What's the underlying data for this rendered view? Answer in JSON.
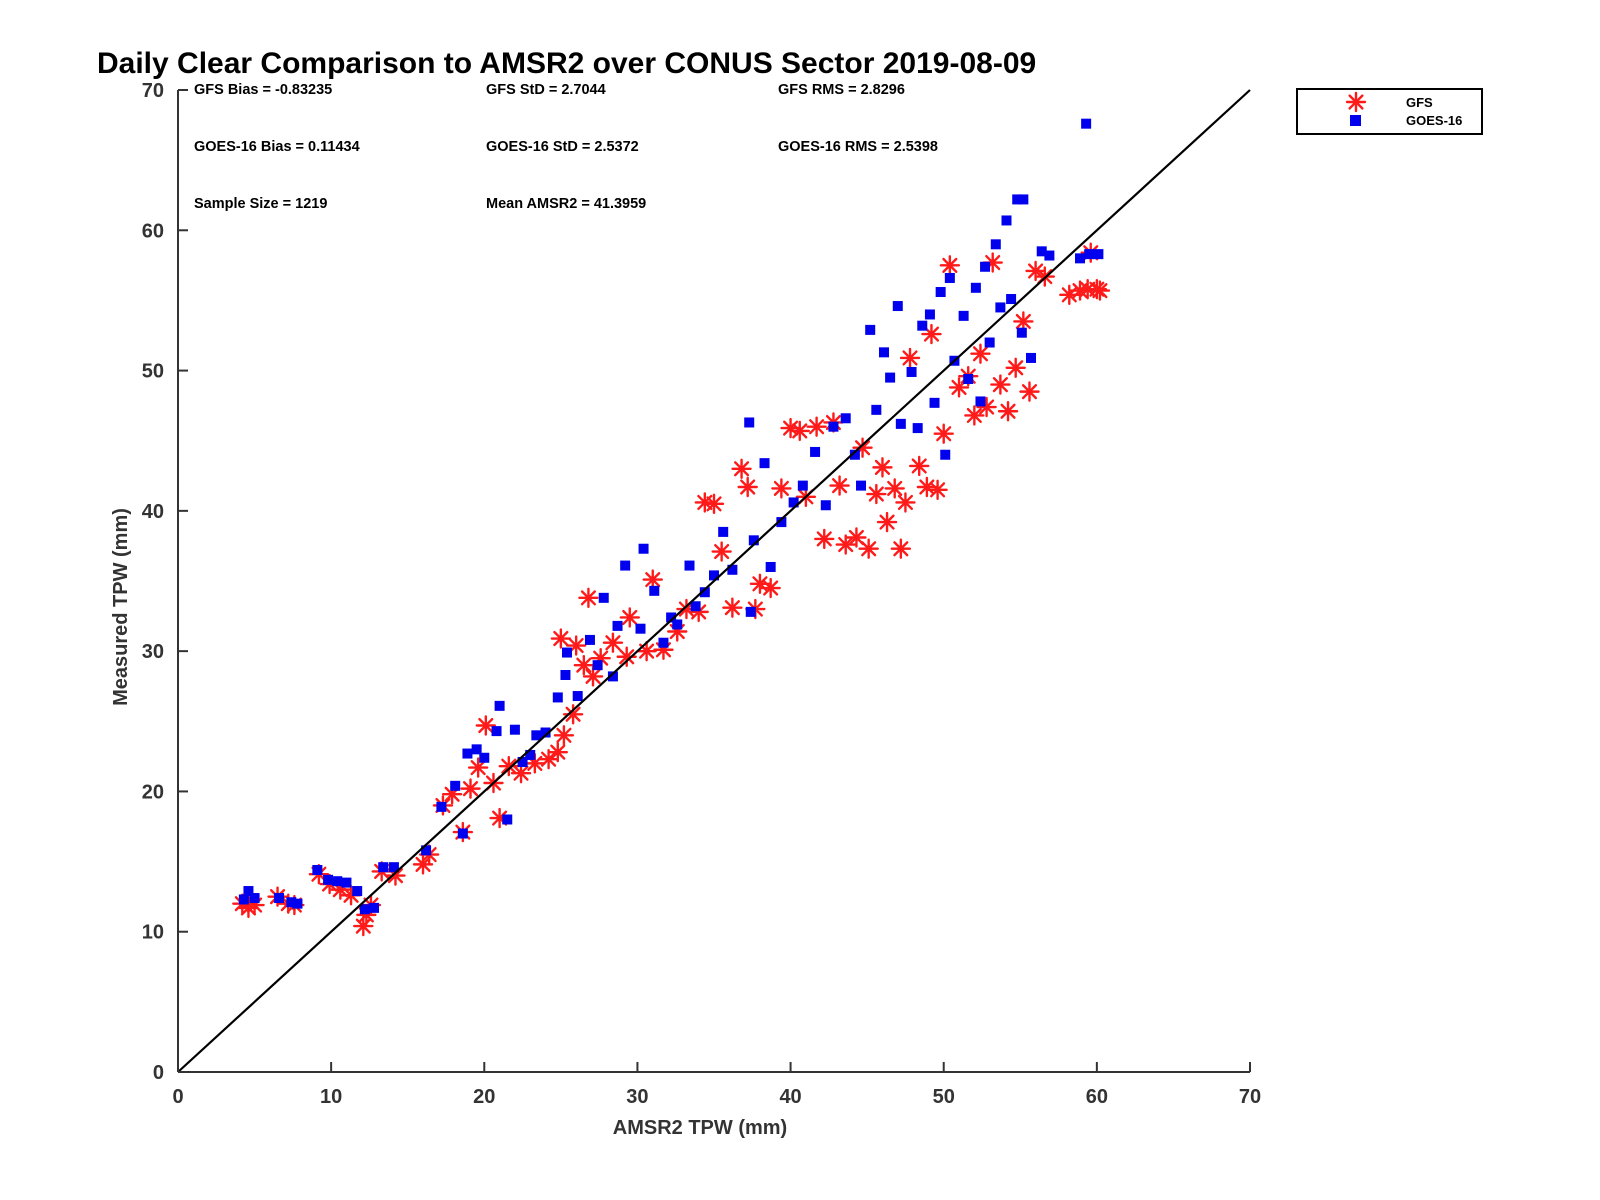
{
  "colors": {
    "gfs": "#ff1a1a",
    "goes": "#0000ee",
    "axis": "#333333",
    "line": "#000000"
  },
  "chart_data": {
    "type": "scatter",
    "title": "Daily Clear Comparison to AMSR2 over CONUS Sector 2019-08-09",
    "xlabel": "AMSR2 TPW (mm)",
    "ylabel": "Measured TPW (mm)",
    "xlim": [
      0,
      70
    ],
    "ylim": [
      0,
      70
    ],
    "xticks": [
      "0",
      "10",
      "20",
      "30",
      "40",
      "50",
      "60",
      "70"
    ],
    "yticks": [
      "0",
      "10",
      "20",
      "30",
      "40",
      "50",
      "60",
      "70"
    ],
    "grid": false,
    "legend_position": "outside top-right",
    "reference_line": [
      [
        0,
        0
      ],
      [
        70,
        70
      ]
    ],
    "stats": {
      "gfs_bias": "GFS Bias = -0.83235",
      "gfs_std": "GFS StD = 2.7044",
      "gfs_rms": "GFS RMS = 2.8296",
      "goes_bias": "GOES-16 Bias = 0.11434",
      "goes_std": "GOES-16 StD = 2.5372",
      "goes_rms": "GOES-16 RMS = 2.5398",
      "sample_size": "Sample Size = 1219",
      "mean_amsr2": "Mean AMSR2 = 41.3959"
    },
    "series": [
      {
        "name": "GFS",
        "marker": "asterisk",
        "points": [
          [
            4.2,
            12.0
          ],
          [
            4.6,
            11.7
          ],
          [
            5.0,
            11.9
          ],
          [
            6.5,
            12.5
          ],
          [
            7.2,
            12.0
          ],
          [
            7.6,
            11.9
          ],
          [
            9.2,
            14.1
          ],
          [
            9.9,
            13.4
          ],
          [
            10.6,
            13.0
          ],
          [
            11.3,
            12.6
          ],
          [
            12.1,
            10.4
          ],
          [
            12.3,
            11.2
          ],
          [
            12.6,
            11.9
          ],
          [
            13.3,
            14.3
          ],
          [
            14.2,
            14.0
          ],
          [
            16.0,
            14.8
          ],
          [
            16.4,
            15.5
          ],
          [
            17.3,
            19.0
          ],
          [
            17.9,
            19.8
          ],
          [
            18.6,
            17.1
          ],
          [
            19.1,
            20.2
          ],
          [
            19.6,
            21.7
          ],
          [
            20.1,
            24.7
          ],
          [
            20.6,
            20.6
          ],
          [
            21.0,
            18.1
          ],
          [
            21.6,
            21.8
          ],
          [
            22.4,
            21.3
          ],
          [
            23.3,
            22.0
          ],
          [
            24.2,
            22.3
          ],
          [
            24.8,
            22.8
          ],
          [
            25.2,
            24.0
          ],
          [
            25.8,
            25.5
          ],
          [
            25.0,
            30.9
          ],
          [
            26.0,
            30.4
          ],
          [
            26.5,
            29.0
          ],
          [
            27.1,
            28.2
          ],
          [
            26.8,
            33.8
          ],
          [
            27.6,
            29.5
          ],
          [
            28.4,
            30.6
          ],
          [
            29.3,
            29.6
          ],
          [
            29.5,
            32.4
          ],
          [
            30.6,
            30.0
          ],
          [
            31.0,
            35.1
          ],
          [
            31.7,
            30.1
          ],
          [
            32.6,
            31.4
          ],
          [
            33.2,
            33.0
          ],
          [
            34.0,
            32.8
          ],
          [
            34.4,
            40.6
          ],
          [
            35.0,
            40.5
          ],
          [
            35.5,
            37.1
          ],
          [
            36.2,
            33.1
          ],
          [
            36.8,
            43.0
          ],
          [
            37.2,
            41.7
          ],
          [
            37.7,
            33.0
          ],
          [
            38.0,
            34.8
          ],
          [
            38.7,
            34.5
          ],
          [
            39.4,
            41.6
          ],
          [
            40.0,
            45.9
          ],
          [
            40.6,
            45.7
          ],
          [
            41.0,
            41.0
          ],
          [
            41.7,
            46.0
          ],
          [
            42.2,
            38.0
          ],
          [
            42.8,
            46.3
          ],
          [
            43.2,
            41.8
          ],
          [
            43.6,
            37.6
          ],
          [
            44.3,
            38.1
          ],
          [
            44.7,
            44.5
          ],
          [
            45.1,
            37.3
          ],
          [
            45.6,
            41.2
          ],
          [
            46.0,
            43.1
          ],
          [
            46.3,
            39.2
          ],
          [
            46.8,
            41.6
          ],
          [
            47.2,
            37.3
          ],
          [
            47.5,
            40.6
          ],
          [
            47.8,
            50.9
          ],
          [
            48.4,
            43.2
          ],
          [
            48.9,
            41.7
          ],
          [
            49.6,
            41.5
          ],
          [
            49.2,
            52.6
          ],
          [
            50.0,
            45.5
          ],
          [
            50.4,
            57.5
          ],
          [
            51.0,
            48.8
          ],
          [
            51.6,
            49.6
          ],
          [
            52.0,
            46.8
          ],
          [
            52.4,
            51.2
          ],
          [
            52.8,
            47.4
          ],
          [
            53.2,
            57.7
          ],
          [
            53.7,
            49.0
          ],
          [
            54.2,
            47.1
          ],
          [
            54.7,
            50.2
          ],
          [
            55.2,
            53.5
          ],
          [
            55.6,
            48.5
          ],
          [
            56.0,
            57.1
          ],
          [
            56.6,
            56.7
          ],
          [
            58.2,
            55.4
          ],
          [
            58.9,
            55.7
          ],
          [
            59.4,
            55.8
          ],
          [
            59.6,
            58.4
          ],
          [
            60.0,
            55.8
          ],
          [
            60.2,
            55.7
          ]
        ]
      },
      {
        "name": "GOES-16",
        "marker": "square",
        "points": [
          [
            4.3,
            12.3
          ],
          [
            4.6,
            12.9
          ],
          [
            5.0,
            12.4
          ],
          [
            6.6,
            12.4
          ],
          [
            7.4,
            12.1
          ],
          [
            7.8,
            12.0
          ],
          [
            9.1,
            14.4
          ],
          [
            9.8,
            13.7
          ],
          [
            10.4,
            13.6
          ],
          [
            11.0,
            13.5
          ],
          [
            11.7,
            12.9
          ],
          [
            12.2,
            11.6
          ],
          [
            12.8,
            11.7
          ],
          [
            13.4,
            14.6
          ],
          [
            14.1,
            14.6
          ],
          [
            16.2,
            15.8
          ],
          [
            17.2,
            18.9
          ],
          [
            18.1,
            20.4
          ],
          [
            18.6,
            17.0
          ],
          [
            18.9,
            22.7
          ],
          [
            19.5,
            23.0
          ],
          [
            20.0,
            22.4
          ],
          [
            20.8,
            24.3
          ],
          [
            21.0,
            26.1
          ],
          [
            21.5,
            18.0
          ],
          [
            22.0,
            24.4
          ],
          [
            22.5,
            22.1
          ],
          [
            23.0,
            22.6
          ],
          [
            23.4,
            24.0
          ],
          [
            24.0,
            24.2
          ],
          [
            24.8,
            26.7
          ],
          [
            25.3,
            28.3
          ],
          [
            25.4,
            29.9
          ],
          [
            26.1,
            26.8
          ],
          [
            26.9,
            30.8
          ],
          [
            27.4,
            29.0
          ],
          [
            27.8,
            33.8
          ],
          [
            28.4,
            28.2
          ],
          [
            28.7,
            31.8
          ],
          [
            29.2,
            36.1
          ],
          [
            30.2,
            31.6
          ],
          [
            30.4,
            37.3
          ],
          [
            31.1,
            34.3
          ],
          [
            31.7,
            30.6
          ],
          [
            32.2,
            32.4
          ],
          [
            32.6,
            31.9
          ],
          [
            33.4,
            36.1
          ],
          [
            33.8,
            33.2
          ],
          [
            34.4,
            34.2
          ],
          [
            35.0,
            35.4
          ],
          [
            35.6,
            38.5
          ],
          [
            36.2,
            35.8
          ],
          [
            37.3,
            46.3
          ],
          [
            37.4,
            32.8
          ],
          [
            37.6,
            37.9
          ],
          [
            38.3,
            43.4
          ],
          [
            38.7,
            36.0
          ],
          [
            39.4,
            39.2
          ],
          [
            40.2,
            40.6
          ],
          [
            40.8,
            41.8
          ],
          [
            41.6,
            44.2
          ],
          [
            42.3,
            40.4
          ],
          [
            42.8,
            46.0
          ],
          [
            43.6,
            46.6
          ],
          [
            44.2,
            44.0
          ],
          [
            44.6,
            41.8
          ],
          [
            45.2,
            52.9
          ],
          [
            45.6,
            47.2
          ],
          [
            46.1,
            51.3
          ],
          [
            46.5,
            49.5
          ],
          [
            47.0,
            54.6
          ],
          [
            47.2,
            46.2
          ],
          [
            47.9,
            49.9
          ],
          [
            48.3,
            45.9
          ],
          [
            48.6,
            53.2
          ],
          [
            49.1,
            54.0
          ],
          [
            49.4,
            47.7
          ],
          [
            49.8,
            55.6
          ],
          [
            50.1,
            44.0
          ],
          [
            50.4,
            56.6
          ],
          [
            50.7,
            50.7
          ],
          [
            51.3,
            53.9
          ],
          [
            51.6,
            49.4
          ],
          [
            52.1,
            55.9
          ],
          [
            52.4,
            47.8
          ],
          [
            52.7,
            57.4
          ],
          [
            53.0,
            52.0
          ],
          [
            53.4,
            59.0
          ],
          [
            53.7,
            54.5
          ],
          [
            54.1,
            60.7
          ],
          [
            54.4,
            55.1
          ],
          [
            54.8,
            62.2
          ],
          [
            55.2,
            62.2
          ],
          [
            55.1,
            52.7
          ],
          [
            55.7,
            50.9
          ],
          [
            56.4,
            58.5
          ],
          [
            56.9,
            58.2
          ],
          [
            58.9,
            58.0
          ],
          [
            59.3,
            67.6
          ],
          [
            59.5,
            58.3
          ],
          [
            60.1,
            58.3
          ]
        ]
      }
    ]
  }
}
